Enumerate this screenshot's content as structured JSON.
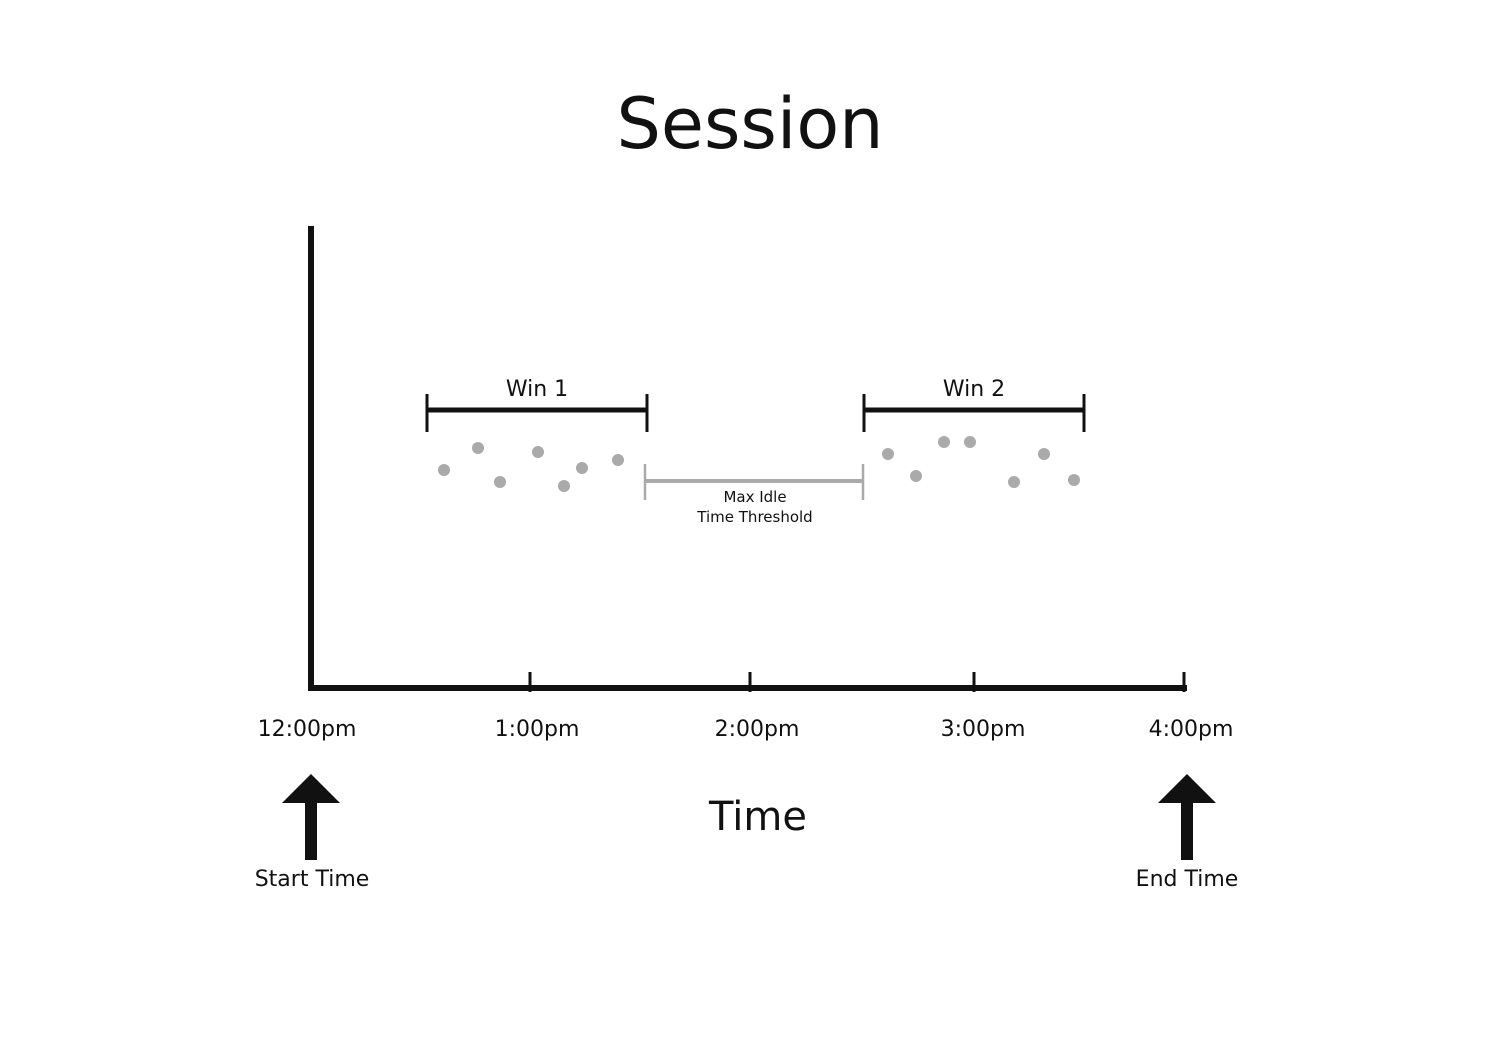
{
  "title": "Session",
  "colors": {
    "ink": "#111111",
    "event_dot": "#aaaaaa",
    "idle_bracket": "#aaaaaa",
    "background": "#ffffff"
  },
  "x_axis": {
    "label": "Time",
    "ticks": [
      "12:00pm",
      "1:00pm",
      "2:00pm",
      "3:00pm",
      "4:00pm"
    ]
  },
  "windows": [
    {
      "label": "Win 1"
    },
    {
      "label": "Win 2"
    }
  ],
  "idle_threshold": {
    "line1": "Max Idle",
    "line2": "Time Threshold"
  },
  "markers": {
    "start": {
      "label": "Start Time",
      "icon": "up-arrow-icon"
    },
    "end": {
      "label": "End Time",
      "icon": "up-arrow-icon"
    }
  }
}
